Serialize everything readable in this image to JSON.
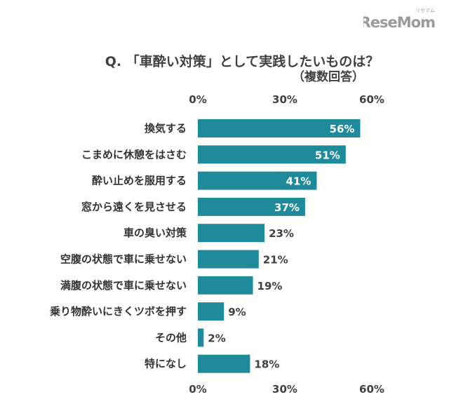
{
  "brand": {
    "logo_text": "ReseMom",
    "logo_sub": "リセマム",
    "logo_color": "#9a9a9a"
  },
  "chart_data": {
    "type": "bar",
    "orientation": "horizontal",
    "title": "Q. 「車酔い対策」として実践したいものは？",
    "subtitle": "（複数回答）",
    "categories": [
      "換気する",
      "こまめに休憩をはさむ",
      "酔い止めを服用する",
      "窓から遠くを見させる",
      "車の臭い対策",
      "空腹の状態で車に乗せない",
      "満腹の状態で車に乗せない",
      "乗り物酔いにきくツボを押す",
      "その他",
      "特になし"
    ],
    "values": [
      56,
      51,
      41,
      37,
      23,
      21,
      19,
      9,
      2,
      18
    ],
    "value_labels": [
      "56%",
      "51%",
      "41%",
      "37%",
      "23%",
      "21%",
      "19%",
      "9%",
      "2%",
      "18%"
    ],
    "xlim": [
      0,
      60
    ],
    "ticks": [
      0,
      30,
      60
    ],
    "tick_labels": [
      "0%",
      "30%",
      "60%"
    ],
    "grid": false,
    "bar_color": "#1f8a9a"
  }
}
